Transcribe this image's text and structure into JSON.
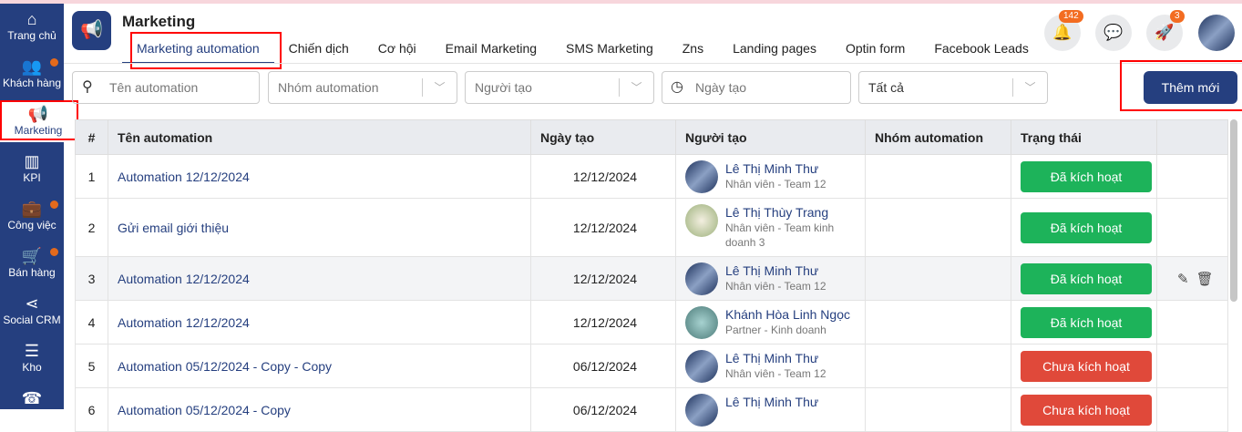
{
  "sidebar": {
    "items": [
      {
        "label": "Trang chủ",
        "icon": "home-icon",
        "dot": false
      },
      {
        "label": "Khách hàng",
        "icon": "users-icon",
        "dot": true
      },
      {
        "label": "Marketing",
        "icon": "megaphone-icon",
        "dot": false,
        "active": true
      },
      {
        "label": "KPI",
        "icon": "chart-icon",
        "dot": false
      },
      {
        "label": "Công việc",
        "icon": "briefcase-icon",
        "dot": true
      },
      {
        "label": "Bán hàng",
        "icon": "cart-icon",
        "dot": true
      },
      {
        "label": "Social CRM",
        "icon": "share-icon",
        "dot": false
      },
      {
        "label": "Kho",
        "icon": "warehouse-icon",
        "dot": false
      },
      {
        "label": "",
        "icon": "phone-icon",
        "dot": false
      }
    ]
  },
  "header": {
    "title": "Marketing",
    "tabs": [
      "Marketing automation",
      "Chiến dịch",
      "Cơ hội",
      "Email Marketing",
      "SMS Marketing",
      "Zns",
      "Landing pages",
      "Optin form",
      "Facebook Leads"
    ],
    "notif_count": "142",
    "rocket_count": "3"
  },
  "filters": {
    "name_placeholder": "Tên automation",
    "group_placeholder": "Nhóm automation",
    "creator_placeholder": "Người tạo",
    "date_placeholder": "Ngày tạo",
    "status_value": "Tất cả",
    "add_label": "Thêm mới"
  },
  "table": {
    "columns": [
      "#",
      "Tên automation",
      "Ngày tạo",
      "Người tạo",
      "Nhóm automation",
      "Trạng thái",
      ""
    ],
    "rows": [
      {
        "no": "1",
        "name": "Automation 12/12/2024",
        "date": "12/12/2024",
        "creator": "Lê Thị Minh Thư",
        "role": "Nhân viên - Team 12",
        "group": "",
        "status": "Đã kích hoạt"
      },
      {
        "no": "2",
        "name": "Gửi email giới thiệu",
        "date": "12/12/2024",
        "creator": "Lê Thị Thùy Trang",
        "role": "Nhân viên - Team kinh doanh 3",
        "group": "",
        "status": "Đã kích hoạt"
      },
      {
        "no": "3",
        "name": "Automation 12/12/2024",
        "date": "12/12/2024",
        "creator": "Lê Thị Minh Thư",
        "role": "Nhân viên - Team 12",
        "group": "",
        "status": "Đã kích hoạt"
      },
      {
        "no": "4",
        "name": "Automation 12/12/2024",
        "date": "12/12/2024",
        "creator": "Khánh Hòa Linh Ngọc",
        "role": "Partner - Kinh doanh",
        "group": "",
        "status": "Đã kích hoạt"
      },
      {
        "no": "5",
        "name": "Automation 05/12/2024 - Copy - Copy",
        "date": "06/12/2024",
        "creator": "Lê Thị Minh Thư",
        "role": "Nhân viên - Team 12",
        "group": "",
        "status": "Chưa kích hoạt"
      },
      {
        "no": "6",
        "name": "Automation 05/12/2024 - Copy",
        "date": "06/12/2024",
        "creator": "Lê Thị Minh Thư",
        "role": "",
        "group": "",
        "status": "Chưa kích hoạt"
      }
    ]
  },
  "colors": {
    "brand": "#253f7f",
    "active": "#1db35a",
    "inactive": "#e0493a",
    "badge": "#f36c21"
  }
}
